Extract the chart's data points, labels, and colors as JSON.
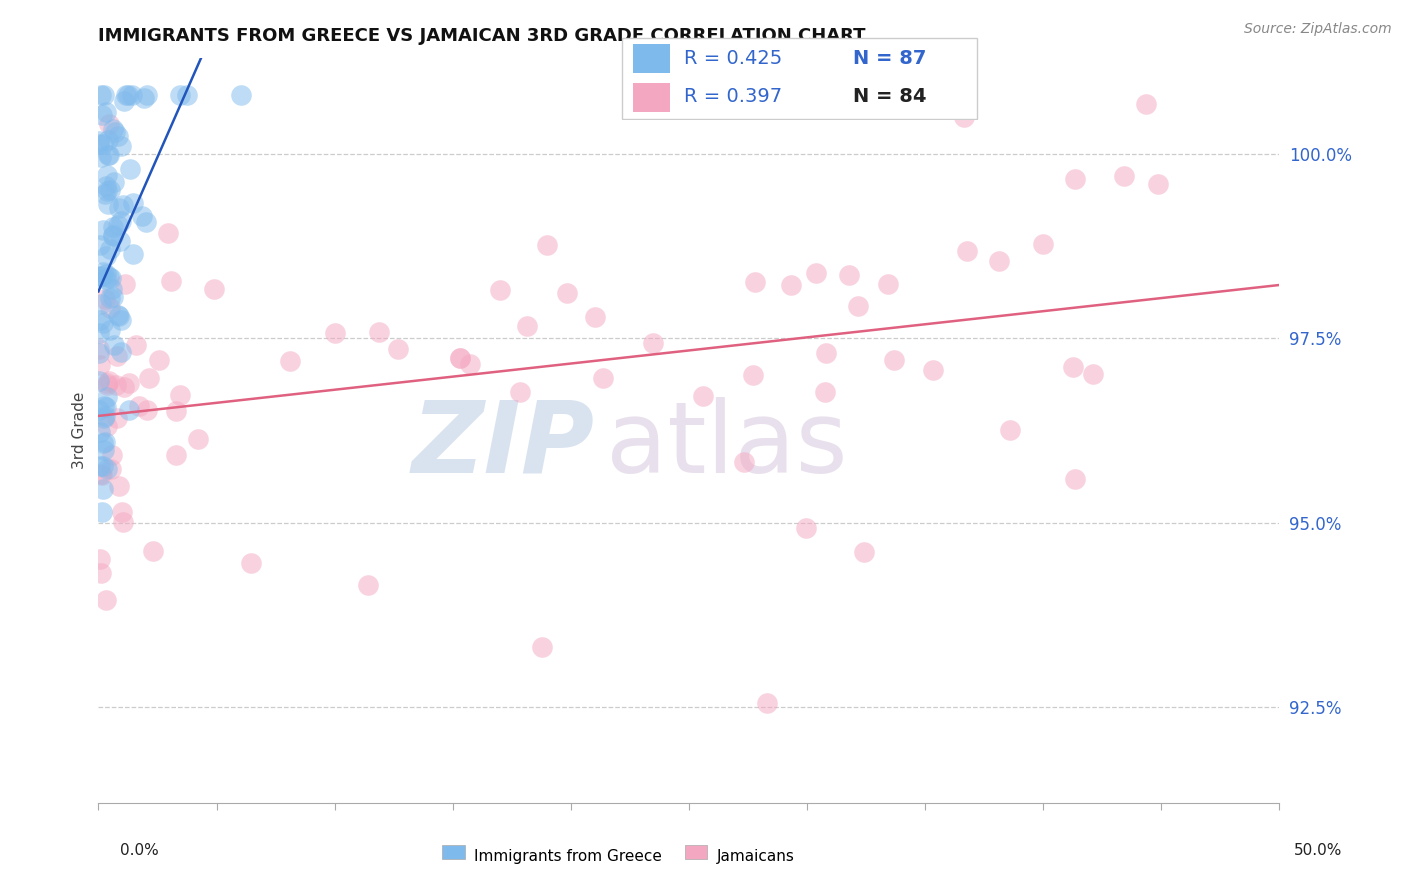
{
  "title": "IMMIGRANTS FROM GREECE VS JAMAICAN 3RD GRADE CORRELATION CHART",
  "source": "Source: ZipAtlas.com",
  "ylabel": "3rd Grade",
  "yticks": [
    92.5,
    95.0,
    97.5,
    100.0
  ],
  "ytick_labels": [
    "92.5%",
    "95.0%",
    "97.5%",
    "100.0%"
  ],
  "xlim": [
    0.0,
    50.0
  ],
  "ylim": [
    91.2,
    101.3
  ],
  "blue_color": "#7FBAEC",
  "pink_color": "#F4A7C0",
  "blue_line_color": "#2255BB",
  "pink_line_color": "#E06080",
  "watermark_zip": "ZIP",
  "watermark_atlas": "atlas",
  "legend_label1": "Immigrants from Greece",
  "legend_label2": "Jamaicans",
  "blue_r": "R = 0.425",
  "blue_n": "N = 87",
  "pink_r": "R = 0.397",
  "pink_n": "N = 84",
  "title_fontsize": 13,
  "source_fontsize": 10,
  "tick_fontsize": 12,
  "legend_fontsize": 14
}
